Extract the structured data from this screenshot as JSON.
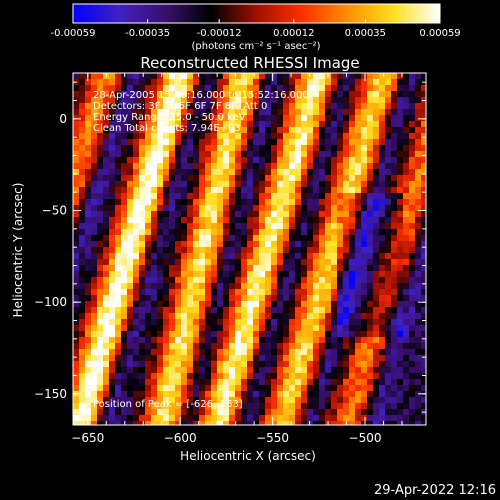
{
  "chart_data": {
    "type": "heatmap",
    "title": "Reconstructed RHESSI Image",
    "xlabel": "Heliocentric X (arcsec)",
    "ylabel": "Heliocentric Y (arcsec)",
    "xlim": [
      -658,
      -467
    ],
    "ylim": [
      -167,
      25
    ],
    "x_ticks": [
      -650,
      -600,
      -550,
      -500
    ],
    "y_ticks": [
      0,
      -50,
      -100,
      -150
    ],
    "colorbar": {
      "range": [
        -0.00059,
        0.00059
      ],
      "tick_values": [
        -0.00059,
        -0.00035,
        -0.00012,
        0.00012,
        0.00035,
        0.00059
      ],
      "tick_labels": [
        "-0.00059",
        "-0.00035",
        "-0.00012",
        "0.00012",
        "0.00035",
        "0.00059"
      ],
      "units_label": "(photons cm⁻² s⁻¹ asec⁻²)",
      "colors": [
        "#0000ff",
        "#4020c0",
        "#3a1070",
        "#000000",
        "#a01000",
        "#ff3000",
        "#ff9000",
        "#ffe020",
        "#ffffff"
      ]
    },
    "annotations": [
      "28-Apr-2005 15:46:16.000 to 15:52:16.000",
      "Detectors: 3F 4F 5F 6F 7F 8F, Att 0",
      "Energy Range: 25.0 - 50.0 keV",
      "Clean    Total counts: 7.94E+03"
    ],
    "peak_label": "Position of Peak = [-626,-163]",
    "peak_position": [
      -626,
      -163
    ],
    "bright_ridges": [
      {
        "x_at_top": -600,
        "x_at_bottom": -655,
        "intensity": 1.0
      },
      {
        "x_at_top": -565,
        "x_at_bottom": -610,
        "intensity": 0.85
      },
      {
        "x_at_top": -525,
        "x_at_bottom": -580,
        "intensity": 0.9
      },
      {
        "x_at_top": -490,
        "x_at_bottom": -545,
        "intensity": 0.8
      },
      {
        "x_at_top": -640,
        "x_at_bottom": -700,
        "intensity": 0.6
      },
      {
        "x_at_top": -455,
        "x_at_bottom": -510,
        "intensity": 0.55
      }
    ]
  },
  "footer_date": "29-Apr-2022 12:16"
}
